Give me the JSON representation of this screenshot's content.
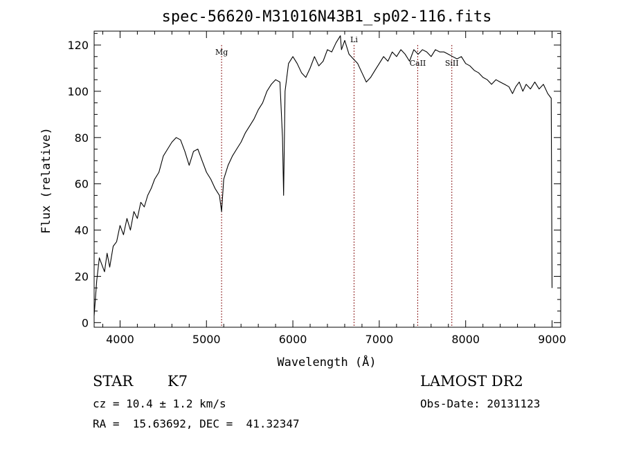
{
  "chart_data": {
    "type": "line",
    "title": "spec-56620-M31016N43B1_sp02-116.fits",
    "xlabel": "Wavelength (Å)",
    "ylabel": "Flux (relative)",
    "xlim": [
      3700,
      9100
    ],
    "ylim": [
      -2,
      126
    ],
    "x_ticks": [
      4000,
      5000,
      6000,
      7000,
      8000,
      9000
    ],
    "y_ticks": [
      0,
      20,
      40,
      60,
      80,
      100,
      120
    ],
    "grid": false,
    "line_color": "#000000",
    "marker_color": "#8b1a1a",
    "lines": [
      {
        "label": "Mg",
        "x": 5175
      },
      {
        "label": "Li",
        "x": 6708
      },
      {
        "label": "CaII",
        "x": 7445
      },
      {
        "label": "SiII",
        "x": 7840
      }
    ],
    "series": [
      {
        "x": [
          3700,
          3730,
          3760,
          3790,
          3820,
          3850,
          3880,
          3920,
          3960,
          4000,
          4040,
          4080,
          4120,
          4160,
          4200,
          4240,
          4280,
          4320,
          4360,
          4400,
          4450,
          4500,
          4550,
          4600,
          4650,
          4700,
          4750,
          4800,
          4850,
          4900,
          4950,
          5000,
          5050,
          5100,
          5150,
          5175,
          5200,
          5250,
          5300,
          5350,
          5400,
          5450,
          5500,
          5550,
          5600,
          5650,
          5700,
          5750,
          5800,
          5850,
          5880,
          5893,
          5910,
          5950,
          6000,
          6050,
          6100,
          6150,
          6200,
          6250,
          6300,
          6350,
          6400,
          6450,
          6500,
          6550,
          6563,
          6600,
          6650,
          6700,
          6750,
          6800,
          6850,
          6900,
          6950,
          7000,
          7050,
          7100,
          7150,
          7200,
          7250,
          7300,
          7350,
          7400,
          7450,
          7500,
          7550,
          7600,
          7650,
          7700,
          7750,
          7800,
          7850,
          7900,
          7950,
          8000,
          8050,
          8100,
          8150,
          8200,
          8250,
          8300,
          8350,
          8400,
          8450,
          8500,
          8542,
          8580,
          8620,
          8662,
          8700,
          8750,
          8800,
          8850,
          8900,
          8950,
          8990,
          9000
        ],
        "values": [
          3,
          18,
          28,
          25,
          22,
          30,
          24,
          33,
          35,
          42,
          38,
          45,
          40,
          48,
          45,
          52,
          50,
          55,
          58,
          62,
          65,
          72,
          75,
          78,
          80,
          79,
          74,
          68,
          74,
          75,
          70,
          65,
          62,
          58,
          55,
          48,
          62,
          68,
          72,
          75,
          78,
          82,
          85,
          88,
          92,
          95,
          100,
          103,
          105,
          104,
          80,
          55,
          100,
          112,
          115,
          112,
          108,
          106,
          110,
          115,
          111,
          113,
          118,
          117,
          121,
          124,
          118,
          122,
          116,
          114,
          112,
          108,
          104,
          106,
          109,
          112,
          115,
          113,
          117,
          115,
          118,
          116,
          113,
          118,
          116,
          118,
          117,
          115,
          118,
          117,
          117,
          116,
          115,
          114,
          115,
          112,
          111,
          109,
          108,
          106,
          105,
          103,
          105,
          104,
          103,
          102,
          99,
          102,
          104,
          100,
          103,
          101,
          104,
          101,
          103,
          99,
          97,
          15
        ]
      }
    ]
  },
  "info": {
    "object_class": "STAR",
    "subclass": "K7",
    "survey": "LAMOST DR2",
    "cz": "cz = 10.4 ± 1.2 km/s",
    "obs_date": "Obs-Date: 20131123",
    "coords": "RA =  15.63692, DEC =  41.32347"
  }
}
